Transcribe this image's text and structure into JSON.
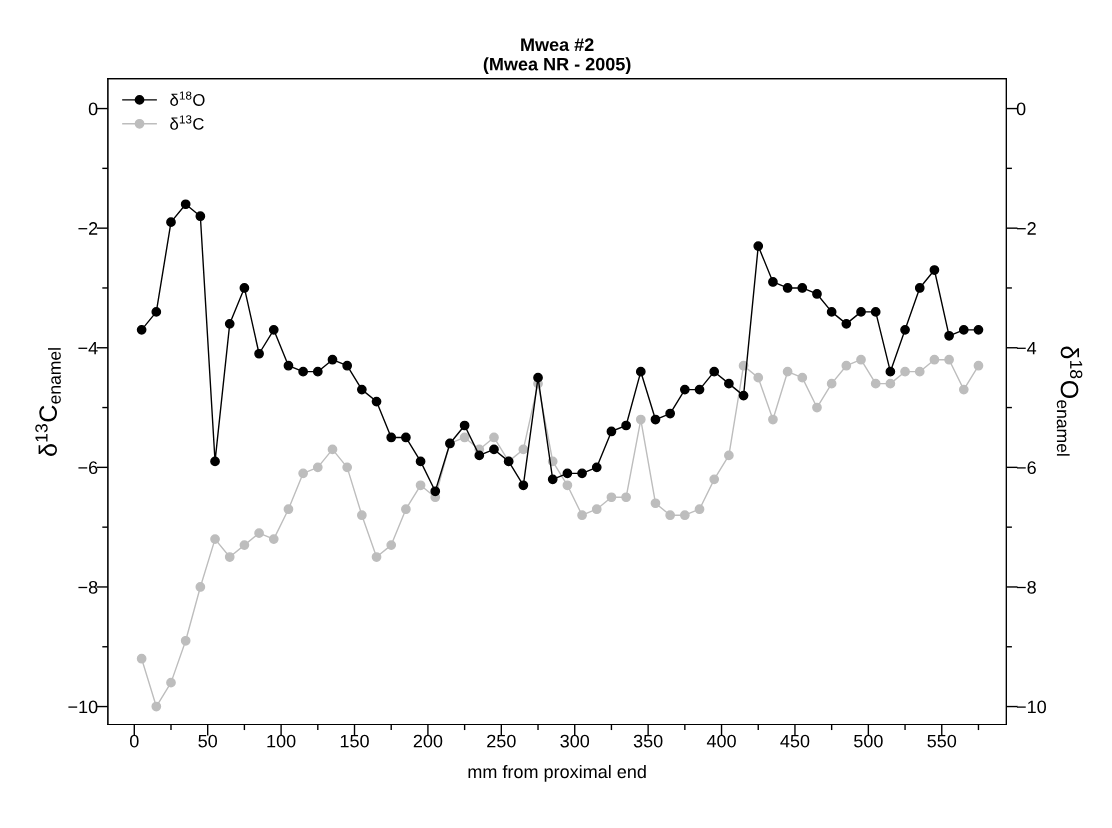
{
  "chart_data": {
    "type": "line",
    "title": "Mwea #2\n(Mwea NR - 2005)",
    "xlabel": "mm from proximal end",
    "ylabel": "δ$^{13}$C$_{enamel}$",
    "y2label": "δ$^{18}$O$_{enamel}$",
    "x": [
      5,
      15,
      25,
      35,
      45,
      55,
      65,
      75,
      85,
      95,
      105,
      115,
      125,
      135,
      145,
      155,
      165,
      175,
      185,
      195,
      205,
      215,
      225,
      235,
      245,
      255,
      265,
      275,
      285,
      295,
      305,
      315,
      325,
      335,
      345,
      355,
      365,
      375,
      385,
      395,
      405,
      415,
      425,
      435,
      445,
      455,
      465,
      475,
      485,
      495,
      505,
      515,
      525,
      535,
      545,
      555,
      565,
      575
    ],
    "series": [
      {
        "name": "δ$^{18}$O",
        "color": "#000000",
        "values": [
          -3.7,
          -3.4,
          -1.9,
          -1.6,
          -1.8,
          -5.9,
          -3.6,
          -3.0,
          -4.1,
          -3.7,
          -4.3,
          -4.4,
          -4.4,
          -4.2,
          -4.3,
          -4.7,
          -4.9,
          -5.5,
          -5.5,
          -5.9,
          -6.4,
          -5.6,
          -5.3,
          -5.8,
          -5.7,
          -5.9,
          -6.3,
          -4.5,
          -6.2,
          -6.1,
          -6.1,
          -6.0,
          -5.4,
          -5.3,
          -4.4,
          -5.2,
          -5.1,
          -4.7,
          -4.7,
          -4.4,
          -4.6,
          -4.8,
          -2.3,
          -2.9,
          -3.0,
          -3.0,
          -3.1,
          -3.4,
          -3.6,
          -3.4,
          -3.4,
          -4.4,
          -3.7,
          -3.0,
          -2.7,
          -3.8,
          -3.7,
          -3.7
        ]
      },
      {
        "name": "δ$^{13}$C",
        "color": "#bdbdbd",
        "values": [
          -9.2,
          -10.0,
          -9.6,
          -8.9,
          -8.0,
          -7.2,
          -7.5,
          -7.3,
          -7.1,
          -7.2,
          -6.7,
          -6.1,
          -6.0,
          -5.7,
          -6.0,
          -6.8,
          -7.5,
          -7.3,
          -6.7,
          -6.3,
          -6.5,
          -5.6,
          -5.5,
          -5.7,
          -5.5,
          -5.9,
          -5.7,
          -4.6,
          -5.9,
          -6.3,
          -6.8,
          -6.7,
          -6.5,
          -6.5,
          -5.2,
          -6.6,
          -6.8,
          -6.8,
          -6.7,
          -6.2,
          -5.8,
          -4.3,
          -4.5,
          -5.2,
          -4.4,
          -4.5,
          -5.0,
          -4.6,
          -4.3,
          -4.2,
          -4.6,
          -4.6,
          -4.4,
          -4.4,
          -4.2,
          -4.2,
          -4.7,
          -4.3
        ]
      }
    ],
    "xlim": [
      -18,
      594
    ],
    "xticks": [
      0,
      {
        "value": 25,
        "label": null
      },
      50,
      {
        "value": 75,
        "label": null
      },
      100,
      {
        "value": 125,
        "label": null
      },
      150,
      {
        "value": 175,
        "label": null
      },
      200,
      {
        "value": 225,
        "label": null
      },
      250,
      {
        "value": 275,
        "label": null
      },
      300,
      {
        "value": 325,
        "label": null
      },
      350,
      {
        "value": 375,
        "label": null
      },
      400,
      {
        "value": 425,
        "label": null
      },
      450,
      {
        "value": 475,
        "label": null
      },
      500,
      {
        "value": 525,
        "label": null
      },
      550,
      {
        "value": 575,
        "label": null
      }
    ],
    "ylim": [
      -10.3,
      0.5
    ],
    "yticks": [
      {
        "value": -10,
        "label": "−10"
      },
      {
        "value": -9,
        "label": null
      },
      {
        "value": -8,
        "label": "−8"
      },
      {
        "value": -7,
        "label": null
      },
      {
        "value": -6,
        "label": "−6"
      },
      {
        "value": -5,
        "label": null
      },
      {
        "value": -4,
        "label": "−4"
      },
      {
        "value": -3,
        "label": null
      },
      {
        "value": -2,
        "label": "−2"
      },
      {
        "value": -1,
        "label": null
      },
      0
    ],
    "y2lim": [
      -10.3,
      0.5
    ],
    "y2ticks": [
      {
        "value": -10,
        "label": "−10"
      },
      {
        "value": -9,
        "label": null
      },
      {
        "value": -8,
        "label": "−8"
      },
      {
        "value": -7,
        "label": null
      },
      {
        "value": -6,
        "label": "−6"
      },
      {
        "value": -5,
        "label": null
      },
      {
        "value": -4,
        "label": "−4"
      },
      {
        "value": -3,
        "label": null
      },
      {
        "value": -2,
        "label": "−2"
      },
      {
        "value": -1,
        "label": null
      },
      0
    ],
    "marker": "circle",
    "line_style": "solid",
    "grid": false,
    "legend": "top left"
  }
}
